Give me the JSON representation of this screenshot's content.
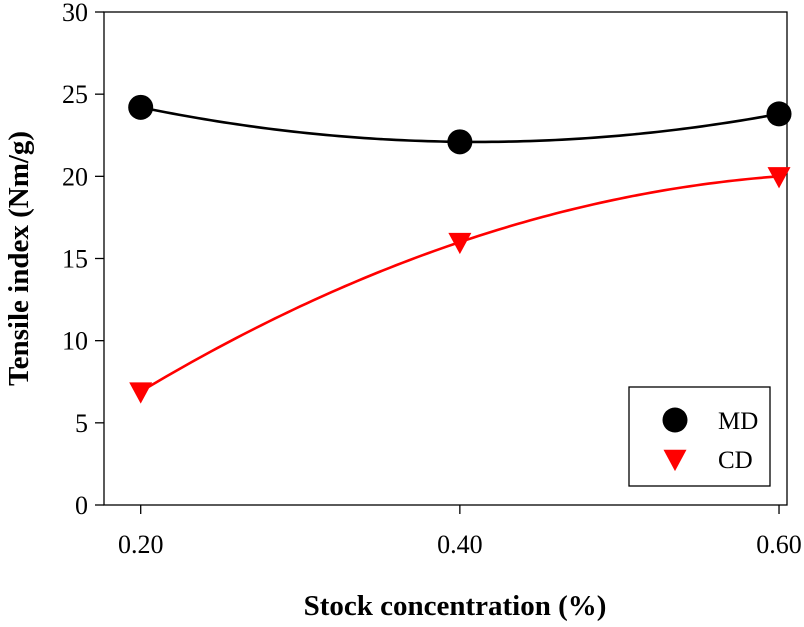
{
  "chart_data": {
    "type": "line",
    "title": "",
    "xlabel": "Stock concentration (%)",
    "ylabel": "Tensile index (Nm/g)",
    "x": [
      0.2,
      0.4,
      0.6
    ],
    "x_tick_labels": [
      "0.20",
      "0.40",
      "0.60"
    ],
    "xlim": [
      0.177,
      0.605
    ],
    "ylim": [
      0,
      30
    ],
    "y_ticks": [
      0,
      5,
      10,
      15,
      20,
      25,
      30
    ],
    "y_tick_labels": [
      "0",
      "5",
      "10",
      "15",
      "20",
      "25",
      "30"
    ],
    "grid": false,
    "legend_position": "bottom-right",
    "series": [
      {
        "name": "MD",
        "values": [
          24.2,
          22.1,
          23.8
        ],
        "color": "#000000",
        "marker": "circle",
        "fit": "quadratic"
      },
      {
        "name": "CD",
        "values": [
          6.9,
          16.0,
          20.0
        ],
        "color": "#ff0000",
        "marker": "triangle-down",
        "fit": "quadratic"
      }
    ]
  }
}
